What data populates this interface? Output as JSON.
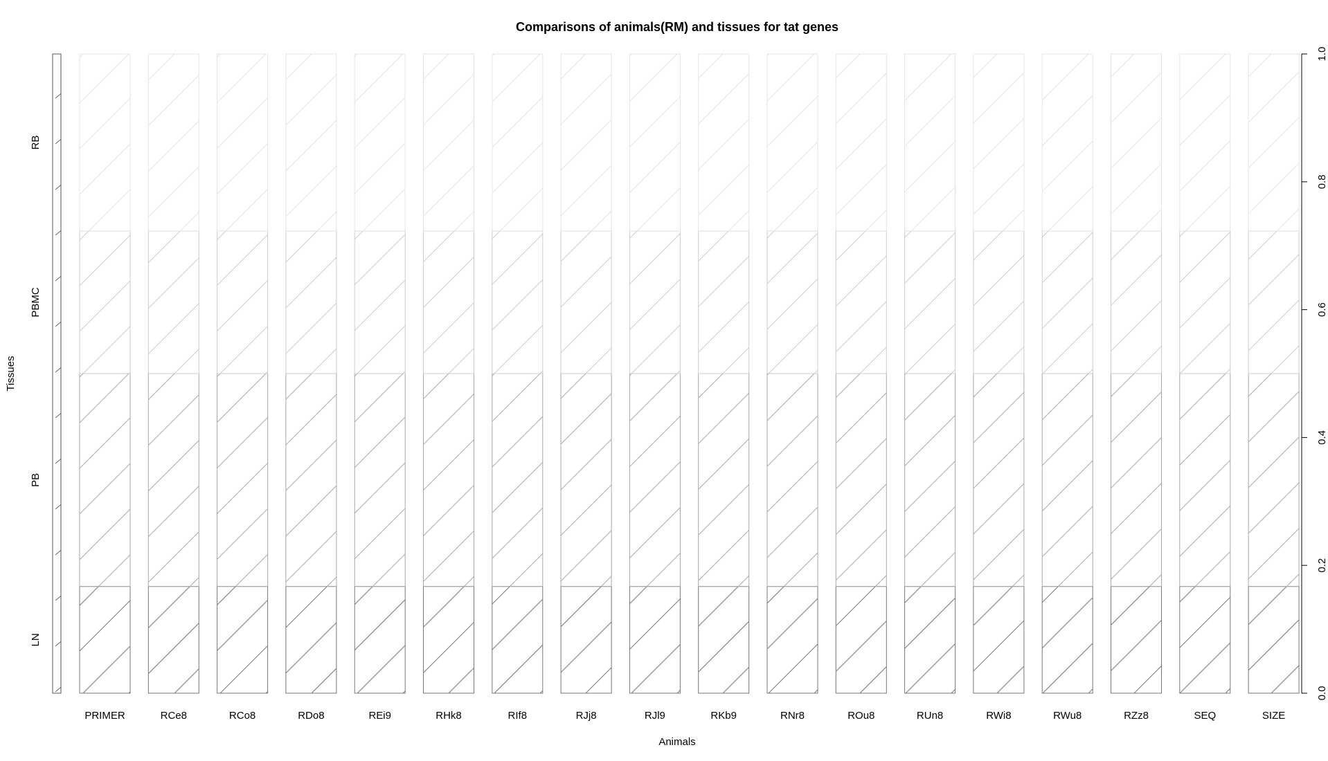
{
  "chart_data": {
    "type": "bar",
    "subtype": "stacked-proportion (spineplot)",
    "title": "Comparisons of animals(RM) and tissues for tat genes",
    "xlabel": "Animals",
    "ylabel": "Tissues",
    "categories": [
      "PRIMER",
      "RCe8",
      "RCo8",
      "RDo8",
      "REi9",
      "RHk8",
      "RIf8",
      "RJj8",
      "RJl9",
      "RKb9",
      "RNr8",
      "ROu8",
      "RUn8",
      "RWi8",
      "RWu8",
      "RZz8",
      "SEQ",
      "SIZE"
    ],
    "series": [
      {
        "name": "LN",
        "values": [
          0.167,
          0.167,
          0.167,
          0.167,
          0.167,
          0.167,
          0.167,
          0.167,
          0.167,
          0.167,
          0.167,
          0.167,
          0.167,
          0.167,
          0.167,
          0.167,
          0.167,
          0.167
        ]
      },
      {
        "name": "PB",
        "values": [
          0.333,
          0.333,
          0.333,
          0.333,
          0.333,
          0.333,
          0.333,
          0.333,
          0.333,
          0.333,
          0.333,
          0.333,
          0.333,
          0.333,
          0.333,
          0.333,
          0.333,
          0.333
        ]
      },
      {
        "name": "PBMC",
        "values": [
          0.223,
          0.223,
          0.223,
          0.223,
          0.223,
          0.223,
          0.223,
          0.223,
          0.223,
          0.223,
          0.223,
          0.223,
          0.223,
          0.223,
          0.223,
          0.223,
          0.223,
          0.223
        ]
      },
      {
        "name": "RB",
        "values": [
          0.277,
          0.277,
          0.277,
          0.277,
          0.277,
          0.277,
          0.277,
          0.277,
          0.277,
          0.277,
          0.277,
          0.277,
          0.277,
          0.277,
          0.277,
          0.277,
          0.277,
          0.277
        ]
      }
    ],
    "series_colors": [
      "#777777",
      "#a8a8a8",
      "#cccccc",
      "#e4e4e4"
    ],
    "ylim": [
      0,
      1
    ],
    "right_axis_ticks": [
      "0.0",
      "0.2",
      "0.4",
      "0.6",
      "0.8",
      "1.0"
    ],
    "fill": "hatched",
    "grid": false,
    "legend": "none"
  }
}
